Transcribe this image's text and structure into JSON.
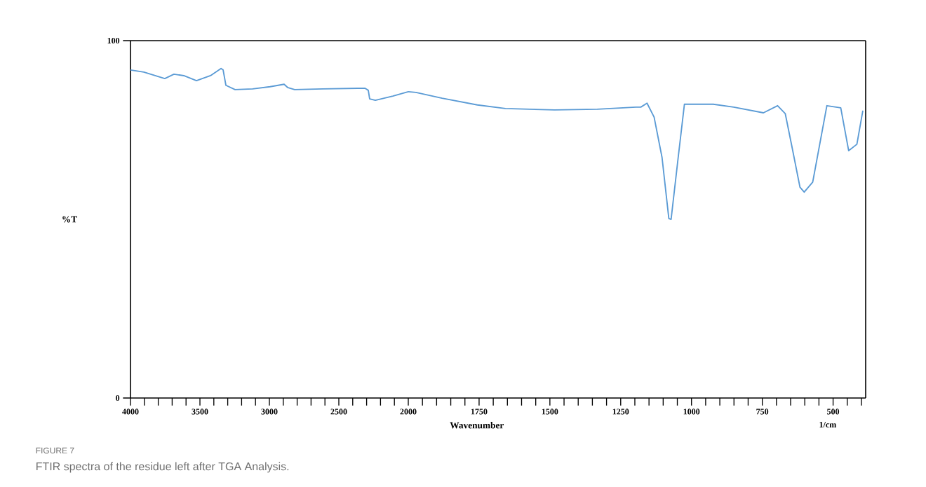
{
  "chart_data": [
    {
      "type": "line",
      "ylabel": "%T",
      "annotations": [
        "FIGURE 7",
        "FTIR spectra of the residue left after TGA Analysis."
      ],
      "xlim": [
        4000,
        2000
      ],
      "ylim": [
        0,
        100
      ],
      "yticks": [
        0,
        100
      ],
      "xticks": [
        4000,
        {
          "value": 3900,
          "label": null
        },
        {
          "value": 3800,
          "label": null
        },
        {
          "value": 3700,
          "label": null
        },
        {
          "value": 3600,
          "label": null
        },
        3500,
        {
          "value": 3400,
          "label": null
        },
        {
          "value": 3300,
          "label": null
        },
        {
          "value": 3200,
          "label": null
        },
        {
          "value": 3100,
          "label": null
        },
        3000,
        {
          "value": 2900,
          "label": null
        },
        {
          "value": 2800,
          "label": null
        },
        {
          "value": 2700,
          "label": null
        },
        {
          "value": 2600,
          "label": null
        },
        2500,
        {
          "value": 2400,
          "label": null
        },
        {
          "value": 2300,
          "label": null
        },
        {
          "value": 2200,
          "label": null
        },
        {
          "value": 2100,
          "label": null
        }
      ],
      "x": [
        4000,
        3904,
        3753,
        3687,
        3616,
        3525,
        3424,
        3348,
        3333,
        3313,
        3247,
        3121,
        2995,
        2894,
        2869,
        2818,
        2616,
        2313,
        2288,
        2278,
        2237,
        2111,
        2000
      ],
      "series": [
        {
          "color": "#5b9bd5",
          "values": [
            91.8,
            91.2,
            89.4,
            90.6,
            90.2,
            88.8,
            90.2,
            92.2,
            91.8,
            87.5,
            86.3,
            86.5,
            87.1,
            87.8,
            86.9,
            86.3,
            86.5,
            86.7,
            86.1,
            83.7,
            83.3,
            84.5,
            85.7
          ]
        }
      ],
      "marker": "none",
      "line_style": "solid"
    },
    {
      "type": "line",
      "xlabel": "Wavenumber",
      "annotations": [
        "1/cm"
      ],
      "xlim": [
        2000,
        385
      ],
      "ylim": [
        0,
        100
      ],
      "tick_labels": "x",
      "xticks": [
        2000,
        {
          "value": 1950,
          "label": null
        },
        {
          "value": 1900,
          "label": null
        },
        {
          "value": 1850,
          "label": null
        },
        {
          "value": 1800,
          "label": null
        },
        1750,
        {
          "value": 1700,
          "label": null
        },
        {
          "value": 1650,
          "label": null
        },
        {
          "value": 1600,
          "label": null
        },
        {
          "value": 1550,
          "label": null
        },
        1500,
        {
          "value": 1450,
          "label": null
        },
        {
          "value": 1400,
          "label": null
        },
        {
          "value": 1350,
          "label": null
        },
        {
          "value": 1300,
          "label": null
        },
        1250,
        {
          "value": 1200,
          "label": null
        },
        {
          "value": 1150,
          "label": null
        },
        {
          "value": 1100,
          "label": null
        },
        {
          "value": 1050,
          "label": null
        },
        1000,
        {
          "value": 950,
          "label": null
        },
        {
          "value": 900,
          "label": null
        },
        {
          "value": 850,
          "label": null
        },
        {
          "value": 800,
          "label": null
        },
        750,
        {
          "value": 700,
          "label": null
        },
        {
          "value": 650,
          "label": null
        },
        {
          "value": 600,
          "label": null
        },
        {
          "value": 550,
          "label": null
        },
        500,
        {
          "value": 450,
          "label": null
        },
        {
          "value": 400,
          "label": null
        }
      ],
      "x": [
        2000,
        1973,
        1881,
        1756,
        1657,
        1483,
        1333,
        1196,
        1179,
        1157,
        1132,
        1104,
        1080,
        1072,
        1047,
        1025,
        923,
        851,
        746,
        696,
        669,
        644,
        617,
        602,
        572,
        522,
        473,
        445,
        416,
        395
      ],
      "series": [
        {
          "color": "#5b9bd5",
          "values": [
            85.7,
            85.5,
            83.9,
            82.0,
            81.0,
            80.6,
            80.8,
            81.4,
            81.4,
            82.5,
            78.6,
            67.3,
            50.2,
            50.0,
            67.3,
            82.2,
            82.2,
            81.4,
            79.8,
            81.8,
            79.6,
            69.8,
            59.0,
            57.6,
            60.4,
            81.8,
            81.2,
            69.2,
            71.0,
            80.4
          ]
        }
      ],
      "marker": "none",
      "line_style": "solid"
    }
  ]
}
